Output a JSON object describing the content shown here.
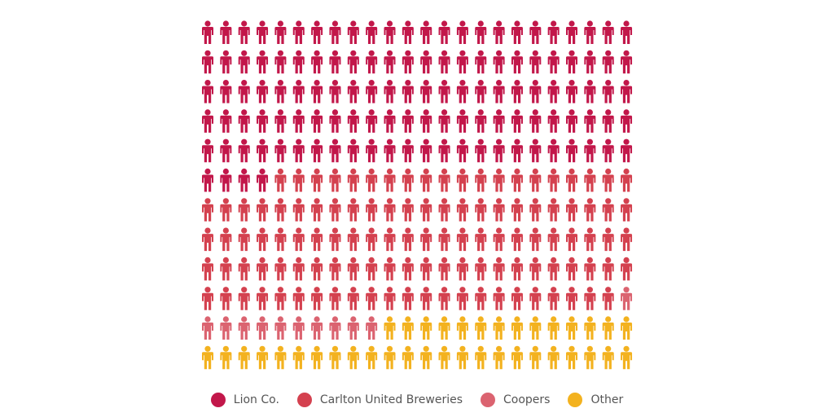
{
  "chart_data": {
    "type": "pictogram",
    "unit_icon": "person-icon",
    "columns": 24,
    "rows": 12,
    "total_icons": 288,
    "legend_position": "bottom",
    "series": [
      {
        "name": "Lion Co.",
        "count": 124,
        "color": "#c2174a"
      },
      {
        "name": "Carlton United Breweries",
        "count": 115,
        "color": "#d4414f"
      },
      {
        "name": "Coopers",
        "count": 11,
        "color": "#db6370"
      },
      {
        "name": "Other",
        "count": 38,
        "color": "#f3b21f"
      }
    ]
  },
  "legend": {
    "items": [
      {
        "label": "Lion Co.",
        "color": "#c2174a"
      },
      {
        "label": "Carlton United Breweries",
        "color": "#d4414f"
      },
      {
        "label": "Coopers",
        "color": "#db6370"
      },
      {
        "label": "Other",
        "color": "#f3b21f"
      }
    ]
  }
}
